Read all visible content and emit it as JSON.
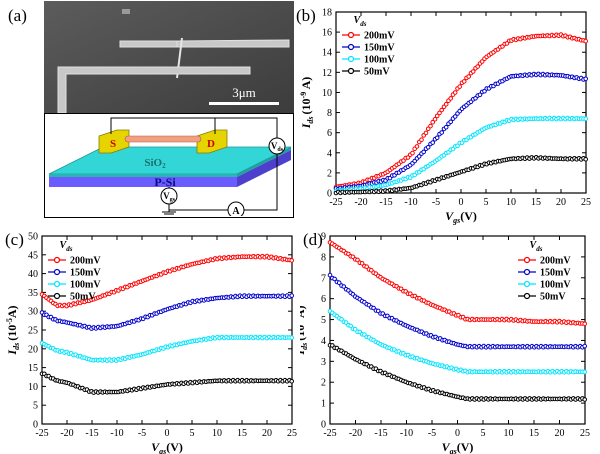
{
  "panel_labels": {
    "a": "(a)",
    "b": "(b)",
    "c": "(c)",
    "d": "(d)"
  },
  "panel_a": {
    "scale_bar": "3μm",
    "source_label": "S",
    "drain_label": "D",
    "oxide_label": "SiO",
    "oxide_subscript": "2",
    "substrate_label": "P-Si",
    "vds_label": "V",
    "vds_sub": "ds",
    "vgs_label": "V",
    "vgs_sub": "gs",
    "ammeter_label": "A"
  },
  "chart_data": [
    {
      "id": "b",
      "type": "scatter",
      "title": "",
      "ylabel": "I",
      "ylabel_sub": "ds",
      "ylabel_unit": "(10",
      "ylabel_exp": "-9",
      "ylabel_close": " A)",
      "xlabel": "V",
      "xlabel_sub": "gs",
      "xlabel_unit": "(V)",
      "xlim": [
        -25,
        25
      ],
      "ylim": [
        0,
        18
      ],
      "xticks": [
        -25,
        -20,
        -15,
        -10,
        -5,
        0,
        5,
        10,
        15,
        20,
        25
      ],
      "yticks": [
        0,
        2,
        4,
        6,
        8,
        10,
        12,
        14,
        16,
        18
      ],
      "legend_title": "V",
      "legend_title_sub": "ds",
      "legend_position": "top-left",
      "series": [
        {
          "name": "200mV",
          "color": "#ff0000",
          "x": [
            -25,
            -20,
            -15,
            -10,
            -5,
            0,
            5,
            10,
            15,
            20,
            25
          ],
          "values": [
            0.6,
            1.0,
            2.0,
            3.8,
            7.5,
            10.8,
            13.5,
            15.2,
            15.6,
            15.7,
            15.1
          ]
        },
        {
          "name": "150mV",
          "color": "#0000cc",
          "x": [
            -25,
            -20,
            -15,
            -10,
            -5,
            0,
            5,
            10,
            15,
            20,
            25
          ],
          "values": [
            0.4,
            0.7,
            1.3,
            2.8,
            5.4,
            8.3,
            10.3,
            11.6,
            11.8,
            11.7,
            11.3
          ]
        },
        {
          "name": "100mV",
          "color": "#00e5ff",
          "x": [
            -25,
            -20,
            -15,
            -10,
            -5,
            0,
            5,
            10,
            15,
            20,
            25
          ],
          "values": [
            0.2,
            0.4,
            0.8,
            1.6,
            3.2,
            5.0,
            6.5,
            7.3,
            7.4,
            7.4,
            7.4
          ]
        },
        {
          "name": "50mV",
          "color": "#000000",
          "x": [
            -25,
            -20,
            -15,
            -10,
            -5,
            0,
            5,
            10,
            15,
            20,
            25
          ],
          "values": [
            0.05,
            0.1,
            0.2,
            0.5,
            1.3,
            2.1,
            2.9,
            3.4,
            3.5,
            3.4,
            3.4
          ]
        }
      ]
    },
    {
      "id": "c",
      "type": "scatter",
      "title": "",
      "ylabel": "I",
      "ylabel_sub": "ds",
      "ylabel_unit": "(10",
      "ylabel_exp": "-5",
      "ylabel_close": "A)",
      "xlabel": "V",
      "xlabel_sub": "gs",
      "xlabel_unit": "(V)",
      "xlim": [
        -25,
        25
      ],
      "ylim": [
        0,
        50
      ],
      "xticks": [
        -25,
        -20,
        -15,
        -10,
        -5,
        0,
        5,
        10,
        15,
        20,
        25
      ],
      "yticks": [
        0,
        5,
        10,
        15,
        20,
        25,
        30,
        35,
        40,
        45,
        50
      ],
      "legend_title": "V",
      "legend_title_sub": "ds",
      "legend_position": "top-left",
      "series": [
        {
          "name": "200mV",
          "color": "#ff0000",
          "x": [
            -25,
            -22,
            -20,
            -15,
            -10,
            -5,
            0,
            5,
            10,
            15,
            20,
            25
          ],
          "values": [
            34.5,
            31.5,
            31.5,
            33.0,
            35.5,
            38.0,
            40.5,
            42.5,
            44.0,
            44.5,
            44.5,
            43.5
          ]
        },
        {
          "name": "150mV",
          "color": "#0000cc",
          "x": [
            -25,
            -22,
            -20,
            -15,
            -10,
            -5,
            0,
            5,
            10,
            15,
            20,
            25
          ],
          "values": [
            29.5,
            27.5,
            27.0,
            25.5,
            26.0,
            28.0,
            30.5,
            32.5,
            33.5,
            34.0,
            34.0,
            34.0
          ]
        },
        {
          "name": "100mV",
          "color": "#00e5ff",
          "x": [
            -25,
            -22,
            -20,
            -15,
            -10,
            -5,
            0,
            5,
            10,
            15,
            20,
            25
          ],
          "values": [
            21.5,
            19.5,
            19.0,
            17.0,
            17.0,
            18.5,
            20.5,
            22.0,
            23.0,
            23.0,
            23.0,
            23.0
          ]
        },
        {
          "name": "50mV",
          "color": "#000000",
          "x": [
            -25,
            -22,
            -20,
            -15,
            -10,
            -5,
            0,
            5,
            10,
            15,
            20,
            25
          ],
          "values": [
            13.5,
            11.5,
            11.0,
            8.5,
            8.5,
            9.5,
            10.5,
            11.0,
            11.5,
            11.5,
            11.5,
            11.5
          ]
        }
      ]
    },
    {
      "id": "d",
      "type": "scatter",
      "title": "",
      "ylabel": "I",
      "ylabel_sub": "ds",
      "ylabel_unit": "(10",
      "ylabel_exp": "-5",
      "ylabel_close": "A)",
      "xlabel": "V",
      "xlabel_sub": "gs",
      "xlabel_unit": "(V)",
      "xlim": [
        -25,
        25
      ],
      "ylim": [
        0,
        9
      ],
      "xticks": [
        -25,
        -20,
        -15,
        -10,
        -5,
        0,
        5,
        10,
        15,
        20,
        25
      ],
      "yticks": [
        0,
        1,
        2,
        3,
        4,
        5,
        6,
        7,
        8,
        9
      ],
      "legend_title": "V",
      "legend_title_sub": "ds",
      "legend_position": "top-right",
      "series": [
        {
          "name": "200mV",
          "color": "#ff0000",
          "x": [
            -25,
            -20,
            -15,
            -10,
            -5,
            0,
            2,
            5,
            10,
            15,
            20,
            25
          ],
          "values": [
            8.7,
            7.9,
            7.0,
            6.3,
            5.7,
            5.2,
            5.0,
            5.0,
            5.0,
            4.9,
            4.9,
            4.8
          ]
        },
        {
          "name": "150mV",
          "color": "#0000cc",
          "x": [
            -25,
            -20,
            -15,
            -10,
            -5,
            0,
            2,
            5,
            10,
            15,
            20,
            25
          ],
          "values": [
            7.1,
            6.1,
            5.3,
            4.7,
            4.2,
            3.8,
            3.7,
            3.7,
            3.7,
            3.7,
            3.7,
            3.7
          ]
        },
        {
          "name": "100mV",
          "color": "#00e5ff",
          "x": [
            -25,
            -20,
            -15,
            -10,
            -5,
            0,
            2,
            5,
            10,
            15,
            20,
            25
          ],
          "values": [
            5.4,
            4.5,
            3.8,
            3.3,
            2.9,
            2.6,
            2.5,
            2.5,
            2.5,
            2.5,
            2.5,
            2.5
          ]
        },
        {
          "name": "50mV",
          "color": "#000000",
          "x": [
            -25,
            -20,
            -15,
            -10,
            -5,
            0,
            2,
            5,
            10,
            15,
            20,
            25
          ],
          "values": [
            3.8,
            3.1,
            2.5,
            2.0,
            1.6,
            1.3,
            1.2,
            1.2,
            1.2,
            1.2,
            1.2,
            1.2
          ]
        }
      ]
    }
  ]
}
